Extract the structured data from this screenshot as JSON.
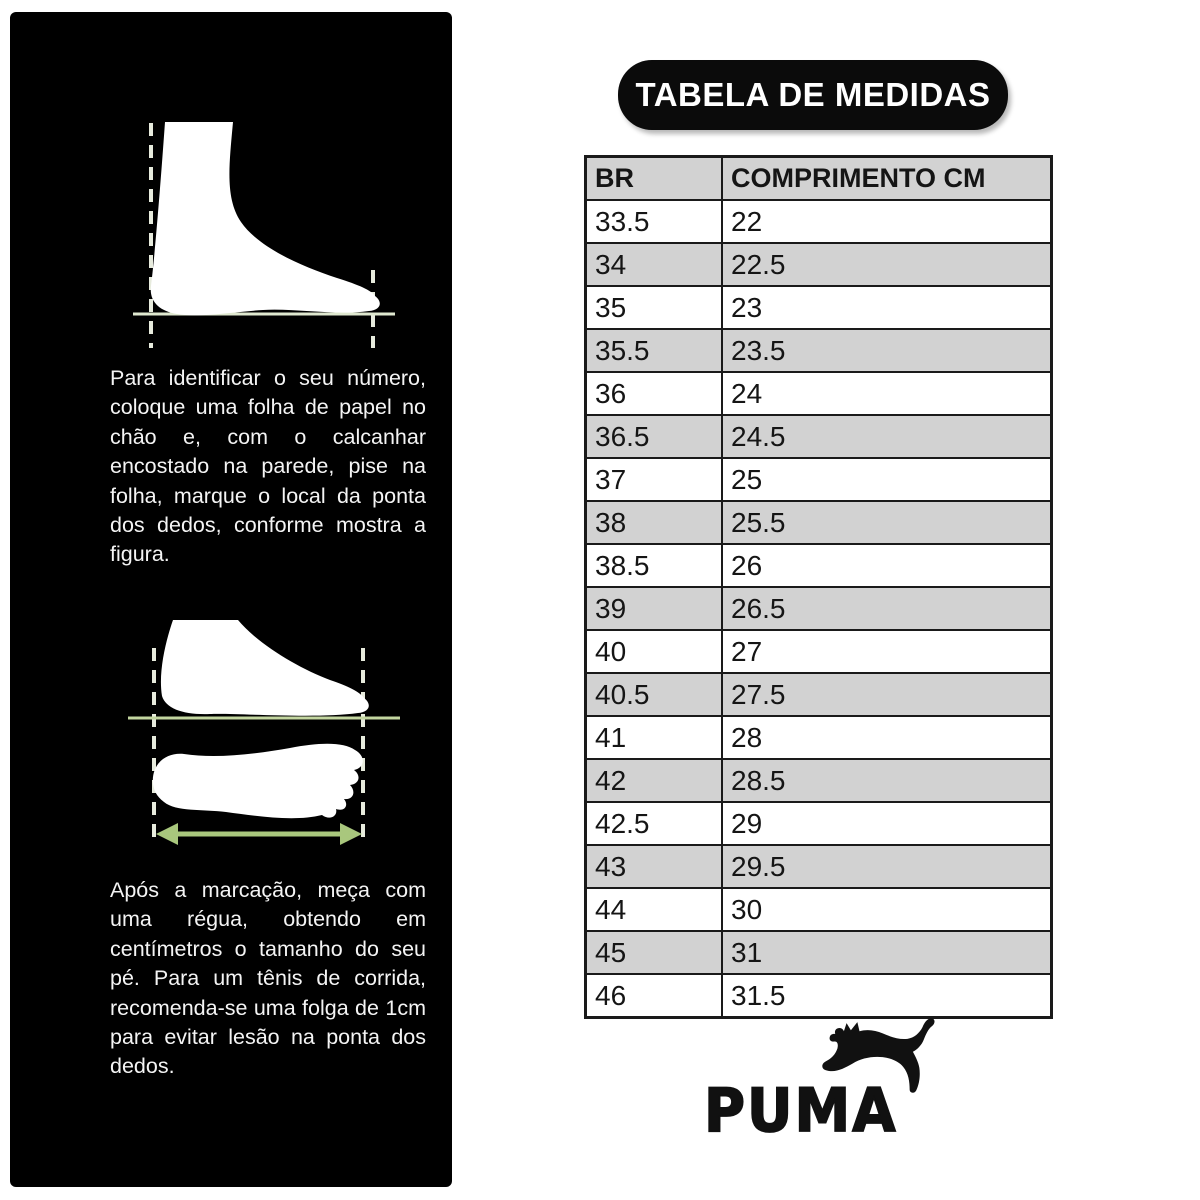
{
  "header": {
    "title": "TABELA DE MEDIDAS"
  },
  "size_table": {
    "columns": [
      "BR",
      "COMPRIMENTO CM"
    ],
    "rows": [
      [
        "33.5",
        "22"
      ],
      [
        "34",
        "22.5"
      ],
      [
        "35",
        "23"
      ],
      [
        "35.5",
        "23.5"
      ],
      [
        "36",
        "24"
      ],
      [
        "36.5",
        "24.5"
      ],
      [
        "37",
        "25"
      ],
      [
        "38",
        "25.5"
      ],
      [
        "38.5",
        "26"
      ],
      [
        "39",
        "26.5"
      ],
      [
        "40",
        "27"
      ],
      [
        "40.5",
        "27.5"
      ],
      [
        "41",
        "28"
      ],
      [
        "42",
        "28.5"
      ],
      [
        "42.5",
        "29"
      ],
      [
        "43",
        "29.5"
      ],
      [
        "44",
        "30"
      ],
      [
        "45",
        "31"
      ],
      [
        "46",
        "31.5"
      ]
    ],
    "header_bg": "#d2d2d2",
    "alt_row_bg": "#d2d2d2",
    "row_bg": "#ffffff",
    "border_color": "#1a1a1a"
  },
  "instructions": {
    "paragraph1": "Para identificar o seu número, coloque uma folha de papel no chão e, com o calcanhar encostado na parede, pise na folha, marque o local da ponta dos dedos, conforme mostra a figura.",
    "paragraph2": "Após a marcação, meça com uma régua, obtendo em centímetros o tamanho do seu pé. Para um tênis de corrida, recomenda-se uma folga de 1cm para evitar lesão na ponta dos dedos."
  },
  "illustrations": {
    "foot_side": "foot-side-profile-with-measure-lines",
    "foot_length": "foot-profile-and-footprint-with-length-arrow",
    "pale_line_color": "#dfe8cf",
    "dash_color": "#e7ebdd",
    "green_line_color": "#c3d6a0",
    "arrow_color": "#a9c77d"
  },
  "panel": {
    "background": "#000000"
  },
  "brand": {
    "name": "PUMA",
    "logo": "puma-leaping-cat"
  }
}
